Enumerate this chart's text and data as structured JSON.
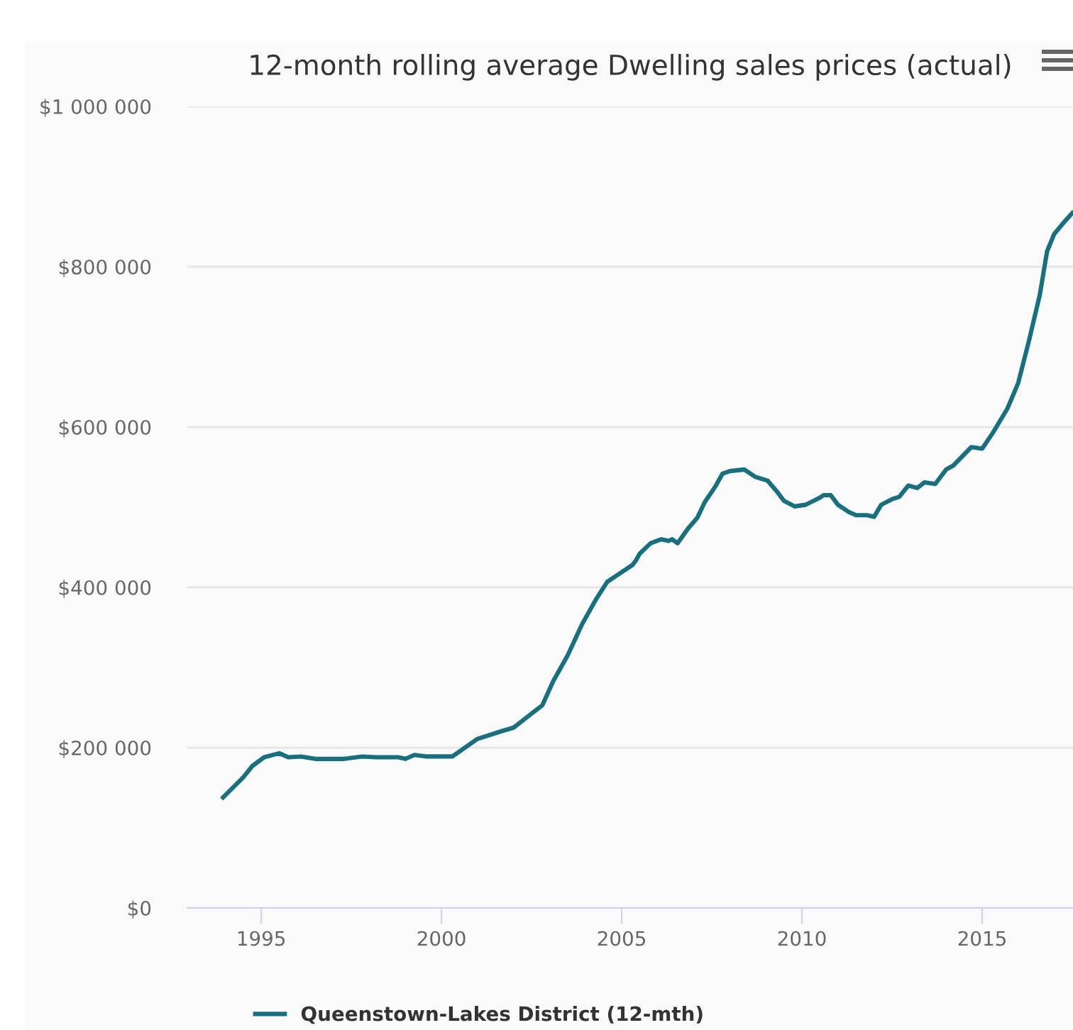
{
  "chart_data": {
    "type": "line",
    "title": "12-month rolling average Dwelling sales prices (actual)",
    "x": [
      1993.94,
      1994.5,
      1994.75,
      1995.08,
      1995.5,
      1995.75,
      1996.1,
      1996.5,
      1996.9,
      1997.3,
      1997.8,
      1998.2,
      1998.8,
      1999.0,
      1999.25,
      1999.6,
      1999.9,
      2000.3,
      2001.0,
      2001.7,
      2002.0,
      2002.4,
      2002.8,
      2003.1,
      2003.5,
      2003.9,
      2004.3,
      2004.6,
      2004.9,
      2005.3,
      2005.4,
      2005.5,
      2005.8,
      2006.1,
      2006.3,
      2006.4,
      2006.55,
      2006.85,
      2007.1,
      2007.3,
      2007.6,
      2007.8,
      2008.0,
      2008.4,
      2008.7,
      2009.05,
      2009.3,
      2009.5,
      2009.8,
      2010.1,
      2010.5,
      2010.6,
      2010.8,
      2011.0,
      2011.3,
      2011.5,
      2011.8,
      2012.0,
      2012.2,
      2012.5,
      2012.7,
      2012.95,
      2013.2,
      2013.4,
      2013.7,
      2014.0,
      2014.2,
      2014.7,
      2015.0,
      2015.3,
      2015.7,
      2016.0,
      2016.3,
      2016.6,
      2016.8,
      2017.0,
      2017.3,
      2017.5
    ],
    "series": [
      {
        "name": "Queenstown-Lakes District (12-mth)",
        "color": "#17707f",
        "values": [
          138000,
          163000,
          177000,
          188000,
          193000,
          188000,
          189000,
          186000,
          186000,
          186000,
          189000,
          188000,
          188000,
          186000,
          191000,
          189000,
          189000,
          189000,
          211000,
          221000,
          225000,
          239000,
          253000,
          283000,
          315000,
          354000,
          386000,
          407000,
          416000,
          428000,
          434000,
          442000,
          455000,
          460000,
          458000,
          460000,
          455000,
          474000,
          487000,
          506000,
          526000,
          542000,
          545000,
          547000,
          538000,
          533000,
          520000,
          508000,
          501000,
          503000,
          512000,
          515000,
          515000,
          503000,
          494000,
          490000,
          490000,
          488000,
          503000,
          510000,
          513000,
          527000,
          524000,
          531000,
          529000,
          547000,
          552000,
          575000,
          573000,
          593000,
          623000,
          655000,
          708000,
          765000,
          819000,
          841000,
          857000,
          867000
        ]
      }
    ],
    "xlim": [
      1992.95,
      2017.52
    ],
    "xticks": [
      1995,
      2000,
      2005,
      2010,
      2015
    ],
    "ylim": [
      0,
      1000000
    ],
    "yticks": [
      {
        "value": 0,
        "label": "$0"
      },
      {
        "value": 200000,
        "label": "$200 000"
      },
      {
        "value": 400000,
        "label": "$400 000"
      },
      {
        "value": 600000,
        "label": "$600 000"
      },
      {
        "value": 800000,
        "label": "$800 000"
      },
      {
        "value": 1000000,
        "label": "$1 000 000"
      }
    ],
    "grid": "y",
    "legend": "bottom",
    "marker": "none",
    "line_style": "solid"
  }
}
